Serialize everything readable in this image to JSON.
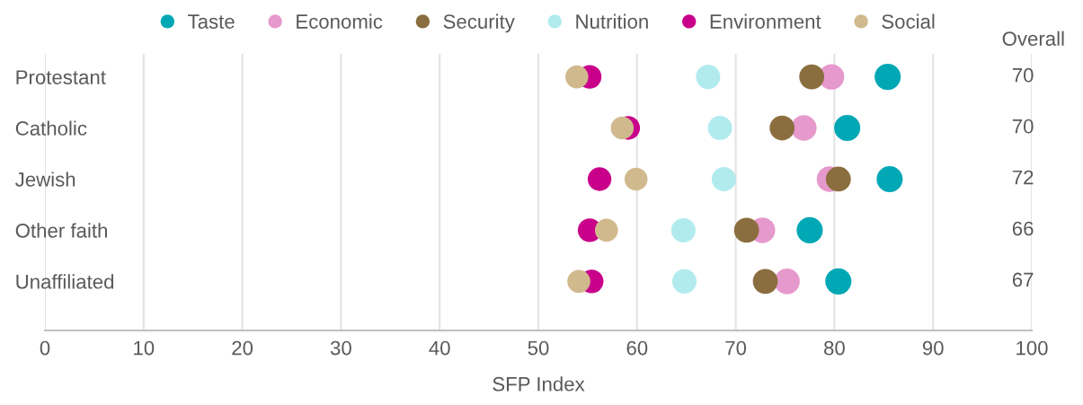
{
  "chart_data": {
    "type": "scatter",
    "orientation": "horizontal",
    "xlabel": "SFP Index",
    "categories": [
      "Protestant",
      "Catholic",
      "Jewish",
      "Other faith",
      "Unaffiliated"
    ],
    "series": [
      {
        "name": "Taste",
        "color": "#00a8b5",
        "values": [
          85.4,
          81.3,
          85.6,
          77.5,
          80.4
        ]
      },
      {
        "name": "Economic",
        "color": "#e699cc",
        "values": [
          79.7,
          76.9,
          79.5,
          72.7,
          75.2
        ]
      },
      {
        "name": "Security",
        "color": "#8b6e3f",
        "values": [
          77.7,
          74.7,
          80.4,
          71.1,
          73.0
        ]
      },
      {
        "name": "Nutrition",
        "color": "#b2ebee",
        "values": [
          67.2,
          68.4,
          68.8,
          64.7,
          64.8
        ]
      },
      {
        "name": "Environment",
        "color": "#c8008a",
        "values": [
          55.2,
          59.1,
          56.2,
          55.2,
          55.4
        ]
      },
      {
        "name": "Social",
        "color": "#d1b98e",
        "values": [
          53.9,
          58.5,
          59.9,
          56.9,
          54.1
        ]
      }
    ],
    "xlim": [
      0,
      100
    ],
    "xticks": [
      0,
      10,
      20,
      30,
      40,
      50,
      60,
      70,
      80,
      90,
      100
    ],
    "annotations": [
      "Overall",
      "70",
      "70",
      "72",
      "66",
      "67"
    ],
    "grid": "x",
    "legend": "top",
    "marker": "circle"
  }
}
